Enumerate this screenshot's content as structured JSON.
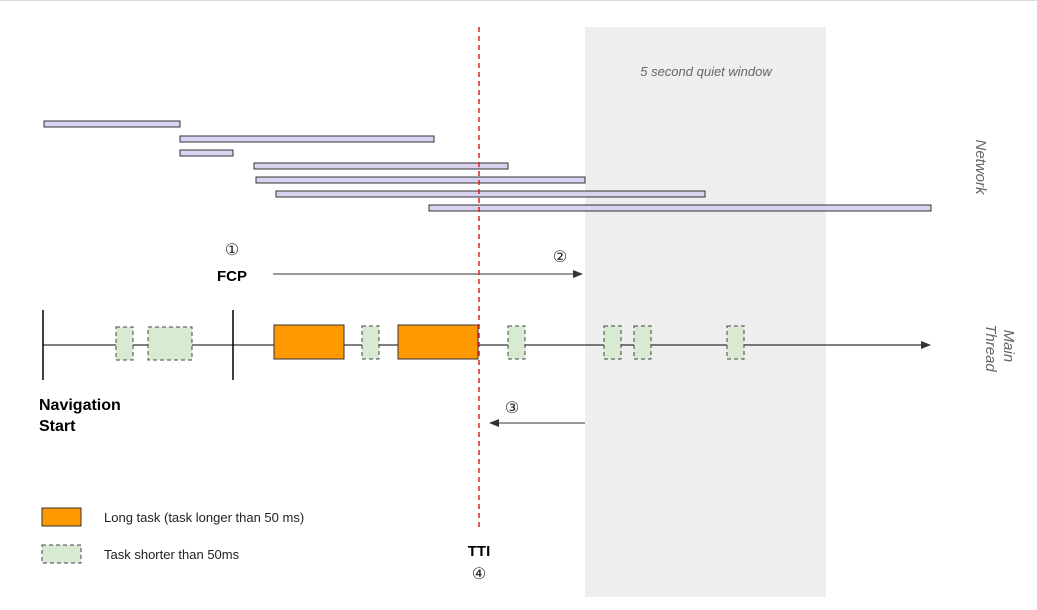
{
  "quiet_window": {
    "label": "5 second quiet window"
  },
  "lanes": {
    "network": "Network",
    "main_thread_line1": "Main",
    "main_thread_line2": "Thread"
  },
  "markers": {
    "step1": "①",
    "fcp": "FCP",
    "step2": "②",
    "step3": "③",
    "nav_start_line1": "Navigation",
    "nav_start_line2": "Start",
    "tti": "TTI",
    "step4": "④"
  },
  "legend": {
    "long_task": "Long task (task longer than 50 ms)",
    "short_task": "Task shorter than 50ms"
  },
  "colors": {
    "long_task": "#ff9900",
    "short_task": "#d9ead3",
    "network_bar": "#d9d2f0",
    "quiet_window": "#eeeeee",
    "tti_line": "#e02020"
  }
}
